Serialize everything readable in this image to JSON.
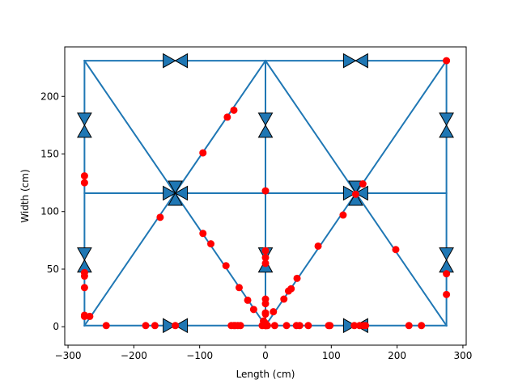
{
  "chart_data": {
    "type": "scatter",
    "title": "",
    "xlabel": "Length (cm)",
    "ylabel": "Width (cm)",
    "xlim": [
      -305,
      305
    ],
    "ylim": [
      -16,
      243
    ],
    "xticks": [
      -300,
      -200,
      -100,
      0,
      100,
      200,
      300
    ],
    "yticks": [
      0,
      50,
      100,
      150,
      200
    ],
    "xtick_labels": [
      "−300",
      "−200",
      "−100",
      "0",
      "100",
      "200",
      "300"
    ],
    "ytick_labels": [
      "0",
      "50",
      "100",
      "150",
      "200"
    ],
    "grid": false,
    "legend": "none",
    "colors": {
      "structure": "#1f77b4",
      "points": "#ff0000",
      "arrow_edge": "#000000"
    },
    "structure_segments": [
      [
        [
          -275,
          1
        ],
        [
          275,
          1
        ]
      ],
      [
        [
          -275,
          116
        ],
        [
          275,
          116
        ]
      ],
      [
        [
          -275,
          231
        ],
        [
          275,
          231
        ]
      ],
      [
        [
          -275,
          1
        ],
        [
          -275,
          231
        ]
      ],
      [
        [
          0,
          1
        ],
        [
          0,
          231
        ]
      ],
      [
        [
          275,
          1
        ],
        [
          275,
          231
        ]
      ],
      [
        [
          -275,
          231
        ],
        [
          0,
          1
        ]
      ],
      [
        [
          0,
          1
        ],
        [
          275,
          231
        ]
      ],
      [
        [
          -275,
          1
        ],
        [
          0,
          231
        ]
      ],
      [
        [
          0,
          231
        ],
        [
          275,
          1
        ]
      ]
    ],
    "bow_markers": [
      {
        "x": -137,
        "y": 231,
        "orientation": "horizontal"
      },
      {
        "x": 137,
        "y": 231,
        "orientation": "horizontal"
      },
      {
        "x": -137,
        "y": 1,
        "orientation": "horizontal"
      },
      {
        "x": 137,
        "y": 1,
        "orientation": "horizontal"
      },
      {
        "x": -275,
        "y": 175,
        "orientation": "vertical"
      },
      {
        "x": 0,
        "y": 175,
        "orientation": "vertical"
      },
      {
        "x": 275,
        "y": 175,
        "orientation": "vertical"
      },
      {
        "x": -275,
        "y": 58,
        "orientation": "vertical"
      },
      {
        "x": 0,
        "y": 58,
        "orientation": "vertical"
      },
      {
        "x": 275,
        "y": 58,
        "orientation": "vertical"
      },
      {
        "x": -137,
        "y": 116,
        "orientation": "horizontal"
      },
      {
        "x": -137,
        "y": 116,
        "orientation": "vertical"
      },
      {
        "x": 137,
        "y": 116,
        "orientation": "horizontal"
      },
      {
        "x": 137,
        "y": 116,
        "orientation": "vertical"
      }
    ],
    "points": {
      "x": [
        275,
        275,
        275,
        -275,
        -275,
        -275,
        -275,
        -275,
        -275,
        -275,
        -267,
        -242,
        -182,
        -168,
        -137,
        -52,
        -48,
        -46,
        -42,
        -38,
        -3,
        0,
        1,
        3,
        14,
        32,
        47,
        52,
        65,
        96,
        98,
        135,
        143,
        149,
        152,
        218,
        237,
        0,
        0,
        0,
        0,
        0,
        0,
        0,
        0,
        0,
        0,
        -60,
        -40,
        -27,
        -18,
        -5,
        12,
        28,
        35,
        39,
        48,
        80,
        118,
        137,
        148,
        198,
        -160,
        -95,
        -83,
        -95,
        -58,
        -48
      ],
      "y": [
        231,
        46,
        28,
        131,
        125,
        47,
        44,
        34,
        10,
        9,
        9,
        1,
        1,
        1,
        1,
        1,
        1,
        1,
        1,
        1,
        5,
        1,
        1,
        1,
        1,
        1,
        1,
        1,
        1,
        1,
        1,
        1,
        1,
        1,
        1,
        1,
        1,
        118,
        66,
        60,
        55,
        24,
        20,
        12,
        11,
        3,
        1,
        53,
        34,
        23,
        15,
        1,
        13,
        24,
        31,
        33,
        42,
        70,
        97,
        115,
        124,
        67,
        95,
        151,
        72,
        81,
        182,
        188
      ]
    }
  }
}
